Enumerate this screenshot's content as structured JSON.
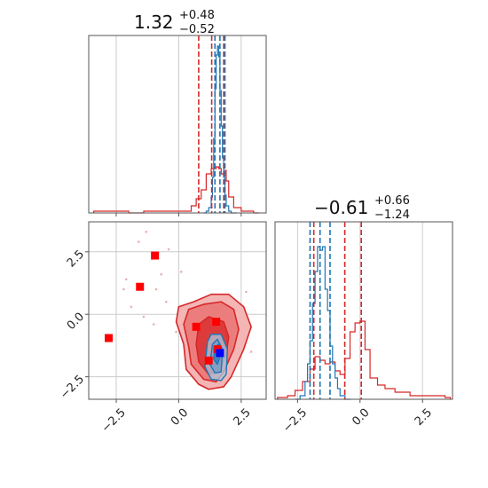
{
  "titles": [
    {
      "value": "1.32",
      "sup": "+0.48",
      "sub": "−0.52"
    },
    {
      "value": "−0.61",
      "sup": "+0.66",
      "sub": "−1.24"
    }
  ],
  "colors": {
    "red": "#d62728",
    "blue": "#1f77b4",
    "grid": "#cccccc",
    "axis": "#555555",
    "marker_red": "#ff0000",
    "marker_blue": "#0000ff"
  },
  "chart_data": {
    "type": "corner",
    "parameters": 2,
    "grid": true,
    "x_ticks": [
      -2.5,
      0.0,
      2.5
    ],
    "x_tick_labels": [
      "−2.5",
      "0.0",
      "2.5"
    ],
    "y_ticks": [
      -2.5,
      0.0,
      2.5
    ],
    "y_tick_labels": [
      "−2.5",
      "0.0",
      "2.5"
    ],
    "param1_range": [
      -3.6,
      3.5
    ],
    "param2_range": [
      -3.4,
      3.7
    ],
    "marginal1": {
      "red_quantiles": [
        0.8,
        1.32,
        1.8
      ],
      "blue_quantiles": [
        1.45,
        1.65,
        1.85
      ],
      "red_hist": {
        "x": [
          -3.4,
          -2.6,
          -2.0,
          -1.4,
          -0.8,
          -0.2,
          0.2,
          0.5,
          0.7,
          0.9,
          1.1,
          1.3,
          1.5,
          1.6,
          1.7,
          1.8,
          1.9,
          2.0,
          2.2,
          2.5,
          3.0
        ],
        "y": [
          0.01,
          0.01,
          0.0,
          0.01,
          0.01,
          0.01,
          0.01,
          0.04,
          0.08,
          0.13,
          0.22,
          0.25,
          0.26,
          0.25,
          0.22,
          0.24,
          0.18,
          0.09,
          0.03,
          0.01,
          0.0
        ]
      },
      "blue_hist": {
        "x": [
          1.0,
          1.1,
          1.2,
          1.3,
          1.35,
          1.4,
          1.45,
          1.5,
          1.55,
          1.6,
          1.65,
          1.7,
          1.75,
          1.8,
          1.85,
          1.9,
          2.0,
          2.1
        ],
        "y": [
          0.0,
          0.01,
          0.03,
          0.09,
          0.2,
          0.42,
          0.7,
          0.89,
          0.94,
          0.88,
          0.69,
          0.49,
          0.31,
          0.2,
          0.1,
          0.04,
          0.01,
          0.0
        ]
      }
    },
    "marginal2": {
      "red_quantiles": [
        -1.85,
        -0.61,
        0.05
      ],
      "blue_quantiles": [
        -2.0,
        -1.6,
        -1.2
      ],
      "red_hist": {
        "x": [
          -3.3,
          -2.9,
          -2.6,
          -2.3,
          -2.0,
          -1.8,
          -1.6,
          -1.4,
          -1.2,
          -1.0,
          -0.8,
          -0.6,
          -0.4,
          -0.2,
          0.0,
          0.2,
          0.4,
          0.7,
          1.0,
          1.4,
          2.0,
          2.8,
          3.4
        ],
        "y": [
          0.01,
          0.02,
          0.05,
          0.1,
          0.17,
          0.24,
          0.22,
          0.2,
          0.21,
          0.16,
          0.14,
          0.23,
          0.38,
          0.43,
          0.44,
          0.28,
          0.12,
          0.08,
          0.06,
          0.04,
          0.02,
          0.02,
          0.01
        ]
      },
      "blue_hist": {
        "x": [
          -2.6,
          -2.4,
          -2.2,
          -2.1,
          -2.0,
          -1.9,
          -1.8,
          -1.7,
          -1.6,
          -1.5,
          -1.4,
          -1.3,
          -1.2,
          -1.1,
          -1.0,
          -0.9,
          -0.8,
          -0.6
        ],
        "y": [
          0.0,
          0.02,
          0.1,
          0.2,
          0.33,
          0.54,
          0.72,
          0.86,
          0.84,
          0.86,
          0.62,
          0.5,
          0.3,
          0.2,
          0.12,
          0.06,
          0.02,
          0.0
        ]
      }
    },
    "joint": {
      "red_contours": [
        [
          [
            0.3,
            -2.2
          ],
          [
            0.2,
            -1.2
          ],
          [
            -0.1,
            -0.3
          ],
          [
            0.0,
            0.3
          ],
          [
            0.6,
            0.5
          ],
          [
            1.3,
            0.8
          ],
          [
            2.0,
            0.8
          ],
          [
            2.6,
            0.3
          ],
          [
            2.9,
            -0.5
          ],
          [
            2.6,
            -1.4
          ],
          [
            2.1,
            -2.5
          ],
          [
            1.8,
            -2.9
          ],
          [
            1.2,
            -3.0
          ],
          [
            0.8,
            -2.8
          ]
        ],
        [
          [
            0.5,
            -2.0
          ],
          [
            0.4,
            -1.3
          ],
          [
            0.2,
            -0.4
          ],
          [
            0.4,
            0.2
          ],
          [
            1.0,
            0.4
          ],
          [
            1.7,
            0.5
          ],
          [
            2.2,
            0.2
          ],
          [
            2.4,
            -0.6
          ],
          [
            2.2,
            -1.4
          ],
          [
            1.8,
            -2.3
          ],
          [
            1.5,
            -2.7
          ],
          [
            1.0,
            -2.6
          ]
        ],
        [
          [
            0.8,
            -1.9
          ],
          [
            0.7,
            -1.2
          ],
          [
            0.8,
            -0.4
          ],
          [
            1.2,
            -0.1
          ],
          [
            1.8,
            -0.3
          ],
          [
            2.0,
            -0.9
          ],
          [
            1.9,
            -1.6
          ],
          [
            1.6,
            -2.3
          ],
          [
            1.2,
            -2.4
          ]
        ]
      ],
      "blue_contours": [
        [
          [
            1.05,
            -2.1
          ],
          [
            1.15,
            -1.1
          ],
          [
            1.3,
            -0.8
          ],
          [
            1.7,
            -0.8
          ],
          [
            1.95,
            -1.4
          ],
          [
            1.9,
            -2.4
          ],
          [
            1.7,
            -2.65
          ],
          [
            1.3,
            -2.6
          ]
        ],
        [
          [
            1.25,
            -2.0
          ],
          [
            1.35,
            -1.2
          ],
          [
            1.55,
            -1.0
          ],
          [
            1.75,
            -1.4
          ],
          [
            1.7,
            -2.3
          ],
          [
            1.45,
            -2.35
          ]
        ],
        [
          [
            1.4,
            -1.8
          ],
          [
            1.45,
            -1.3
          ],
          [
            1.6,
            -1.2
          ],
          [
            1.65,
            -1.7
          ],
          [
            1.55,
            -2.0
          ]
        ]
      ],
      "red_markers": [
        [
          -0.95,
          2.35
        ],
        [
          -1.55,
          1.1
        ],
        [
          -2.8,
          -0.95
        ],
        [
          0.7,
          -0.5
        ],
        [
          1.5,
          -0.3
        ],
        [
          1.2,
          -1.85
        ],
        [
          1.55,
          -1.4
        ]
      ],
      "blue_markers": [
        [
          1.65,
          -1.55
        ]
      ],
      "scatter_points": [
        [
          -1.3,
          3.3
        ],
        [
          -1.6,
          2.9
        ],
        [
          -2.1,
          1.4
        ],
        [
          -1.9,
          0.3
        ],
        [
          -0.7,
          1.6
        ],
        [
          -0.4,
          2.6
        ],
        [
          -1.0,
          -0.4
        ],
        [
          -0.5,
          0.5
        ],
        [
          0.1,
          1.7
        ],
        [
          2.9,
          -1.5
        ],
        [
          2.7,
          0.9
        ],
        [
          -2.2,
          1.0
        ],
        [
          -1.4,
          -0.1
        ],
        [
          -0.1,
          -0.7
        ],
        [
          -0.9,
          1.0
        ]
      ]
    }
  }
}
